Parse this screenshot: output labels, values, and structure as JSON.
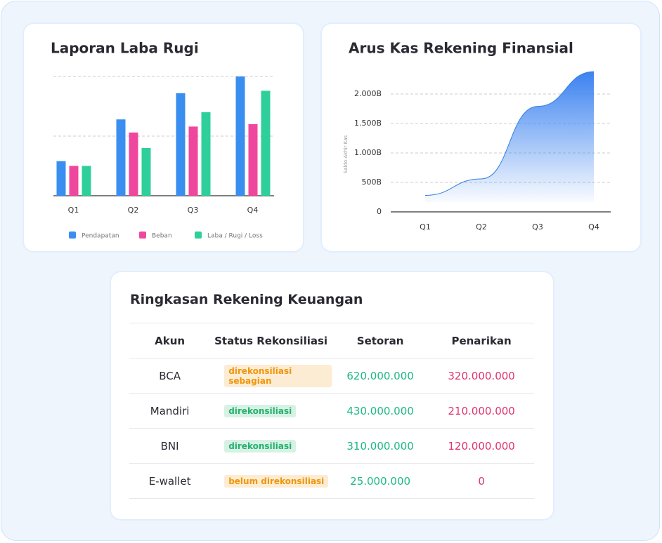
{
  "chart_data": [
    {
      "type": "bar",
      "title": "Laporan Laba Rugi",
      "categories": [
        "Q1",
        "Q2",
        "Q3",
        "Q4"
      ],
      "series": [
        {
          "name": "Pendapatan",
          "color": "#3a8ef0",
          "values": [
            29,
            64,
            86,
            100
          ]
        },
        {
          "name": "Beban",
          "color": "#f0479e",
          "values": [
            25,
            53,
            58,
            60
          ]
        },
        {
          "name": "Laba / Rugi / Loss",
          "color": "#2fcf9c",
          "values": [
            25,
            40,
            70,
            88
          ]
        }
      ],
      "ylim": [
        0,
        100
      ],
      "yticks": [
        0,
        50,
        100
      ],
      "grid": true
    },
    {
      "type": "area",
      "title": "Arus Kas Rekening Finansial",
      "ylabel": "Saldo Akhir Kas",
      "categories": [
        "Q1",
        "Q2",
        "Q3",
        "Q4"
      ],
      "values": [
        280,
        560,
        1790,
        2380
      ],
      "color": "#3b82f0",
      "ylim": [
        0,
        2400
      ],
      "yticks": [
        0,
        {
          "value": 500,
          "label": "500B"
        },
        {
          "value": 1000,
          "label": "1.000B"
        },
        {
          "value": 1500,
          "label": "1.500B"
        },
        {
          "value": 2000,
          "label": "2.000B"
        }
      ],
      "grid": true
    }
  ],
  "table": {
    "title": "Ringkasan Rekening Keuangan",
    "columns": [
      "Akun",
      "Status Rekonsiliasi",
      "Setoran",
      "Penarikan"
    ],
    "rows": [
      {
        "account": "BCA",
        "status": "direkonsiliasi sebagian",
        "status_color": "#f0960a",
        "deposit": "620.000.000",
        "withdrawal": "320.000.000"
      },
      {
        "account": "Mandiri",
        "status": "direkonsiliasi",
        "status_color": "#23b26d",
        "deposit": "430.000.000",
        "withdrawal": "210.000.000"
      },
      {
        "account": "BNI",
        "status": "direkonsiliasi",
        "status_color": "#23b26d",
        "deposit": "310.000.000",
        "withdrawal": "120.000.000"
      },
      {
        "account": "E-wallet",
        "status": "belum direkonsiliasi",
        "status_color": "#f0960a",
        "deposit": "25.000.000",
        "withdrawal": "0"
      }
    ]
  }
}
